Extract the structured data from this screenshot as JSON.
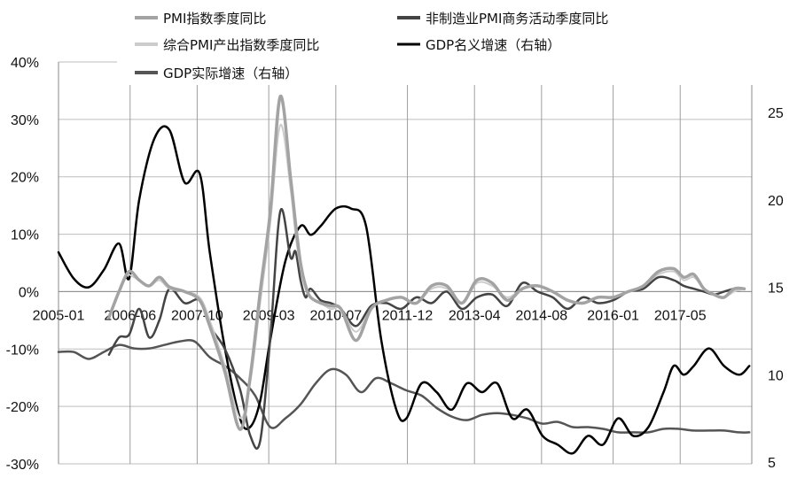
{
  "chart_data": {
    "type": "line",
    "title": "",
    "xlabel": "",
    "ylabel": "",
    "x_tick_labels": [
      "2005-01",
      "2006-06",
      "2007-10",
      "2009-03",
      "2010-07",
      "2011-12",
      "2013-04",
      "2014-08",
      "2016-01",
      "2017-05"
    ],
    "y_left_tick_labels": [
      "40%",
      "30%",
      "20%",
      "10%",
      "0%",
      "-10%",
      "-20%",
      "-30%"
    ],
    "y_right_tick_labels": [
      "25",
      "20",
      "15",
      "10",
      "5"
    ],
    "y_left_range": [
      -30,
      40
    ],
    "y_right_range": [
      5,
      27
    ],
    "grid": true,
    "legend_position": "top",
    "series": [
      {
        "name": "PMI指数季度同比",
        "axis": "left",
        "color": "#a3a3a3",
        "x": [
          2005.3,
          2005.7,
          2006.0,
          2006.2,
          2006.4,
          2006.6,
          2006.8,
          2007.0,
          2007.2,
          2007.5,
          2007.8,
          2008.0,
          2008.3,
          2008.6,
          2008.8,
          2009.0,
          2009.2,
          2009.4,
          2009.6,
          2009.7,
          2009.8,
          2009.9,
          2010.0,
          2010.2,
          2010.4,
          2010.6,
          2010.9,
          2011.2,
          2011.5,
          2011.8,
          2012.1,
          2012.4,
          2012.7,
          2013.0,
          2013.3,
          2013.6,
          2013.9,
          2014.2,
          2014.5,
          2014.8,
          2015.1,
          2015.4,
          2015.7,
          2016.0,
          2016.3,
          2016.6,
          2016.9,
          2017.2,
          2017.4,
          2017.6,
          2017.8,
          2018.0,
          2018.2,
          2018.4,
          2018.6
        ],
        "values": [
          null,
          null,
          -4.5,
          0.0,
          3.5,
          2.0,
          1.0,
          2.5,
          0.8,
          0.0,
          -1.5,
          -6.0,
          -14.0,
          -24.0,
          -15.0,
          0.0,
          14.0,
          34.0,
          20.0,
          12.0,
          5.0,
          1.0,
          -1.0,
          -2.0,
          -2.5,
          -3.0,
          -8.5,
          -3.0,
          -1.5,
          -1.0,
          -2.0,
          1.0,
          1.0,
          -2.0,
          2.0,
          1.5,
          -1.5,
          0.5,
          1.0,
          0.0,
          -1.5,
          -2.0,
          -1.0,
          -1.0,
          0.0,
          1.0,
          3.5,
          4.0,
          2.5,
          3.0,
          0.5,
          -0.5,
          -1.0,
          0.5,
          0.5
        ]
      },
      {
        "name": "非制造业PMI商务活动季度同比",
        "axis": "left",
        "color": "#444444",
        "x": [
          2006.0,
          2006.2,
          2006.4,
          2006.6,
          2006.8,
          2007.0,
          2007.2,
          2007.5,
          2007.8,
          2008.0,
          2008.3,
          2008.6,
          2008.8,
          2009.0,
          2009.2,
          2009.4,
          2009.6,
          2009.7,
          2009.8,
          2009.9,
          2010.0,
          2010.2,
          2010.4,
          2010.6,
          2010.9,
          2011.2,
          2011.5,
          2011.8,
          2012.1,
          2012.4,
          2012.7,
          2013.0,
          2013.3,
          2013.6,
          2013.9,
          2014.2,
          2014.5,
          2014.8,
          2015.1,
          2015.4,
          2015.7,
          2016.0,
          2016.3,
          2016.6,
          2016.9,
          2017.2,
          2017.4,
          2017.6,
          2017.8,
          2018.0,
          2018.2,
          2018.4,
          2018.6
        ],
        "values": [
          -11.0,
          -8.0,
          -7.5,
          -3.0,
          -8.0,
          -5.0,
          0.5,
          -2.0,
          -1.5,
          -6.0,
          -10.0,
          -17.0,
          -25.0,
          -26.0,
          -8.0,
          14.0,
          6.0,
          7.0,
          2.0,
          -1.0,
          0.5,
          -1.5,
          -2.0,
          -3.0,
          -6.0,
          -2.5,
          -2.0,
          -3.0,
          -1.0,
          -2.0,
          0.0,
          -3.0,
          -1.0,
          -0.5,
          -2.5,
          1.5,
          0.0,
          -1.0,
          -3.0,
          -1.0,
          -2.0,
          -1.5,
          0.0,
          0.5,
          2.5,
          2.0,
          1.0,
          0.5,
          0.0,
          -0.5,
          0.0,
          0.5,
          0.5
        ]
      },
      {
        "name": "综合PMI产出指数季度同比",
        "axis": "left",
        "color": "#cccccc",
        "x": [
          2006.4,
          2006.6,
          2006.8,
          2007.0,
          2007.2,
          2007.5,
          2007.8,
          2008.0,
          2008.3,
          2008.6,
          2008.8,
          2009.0,
          2009.2,
          2009.4,
          2009.6,
          2009.7,
          2009.8,
          2009.9,
          2010.0,
          2010.2,
          2010.4,
          2010.6,
          2010.9,
          2011.2,
          2011.5,
          2011.8,
          2012.1,
          2012.4,
          2012.7,
          2013.0,
          2013.3,
          2013.6,
          2013.9,
          2014.2,
          2014.5,
          2014.8,
          2015.1,
          2015.4,
          2015.7,
          2016.0,
          2016.3,
          2016.6,
          2016.9,
          2017.2,
          2017.4,
          2017.6,
          2017.8,
          2018.0,
          2018.2,
          2018.4,
          2018.6
        ],
        "values": [
          3.0,
          2.0,
          1.0,
          2.0,
          0.5,
          0.0,
          -1.0,
          -5.0,
          -13.0,
          -22.0,
          -16.0,
          -2.0,
          12.0,
          29.0,
          18.0,
          10.0,
          4.0,
          0.5,
          -1.0,
          -2.0,
          -3.0,
          -3.0,
          -7.0,
          -3.0,
          -1.5,
          -1.0,
          -2.0,
          0.5,
          0.5,
          -2.0,
          1.5,
          1.0,
          -1.0,
          0.5,
          1.0,
          0.0,
          -1.5,
          -2.0,
          -1.0,
          -1.0,
          0.0,
          1.0,
          3.0,
          3.5,
          2.0,
          2.5,
          0.5,
          -0.5,
          -1.0,
          0.0,
          0.5
        ]
      },
      {
        "name": "GDP名义增速（右轴）",
        "axis": "right",
        "color": "#000000",
        "x": [
          2005.0,
          2005.3,
          2005.6,
          2005.9,
          2006.2,
          2006.4,
          2006.6,
          2006.9,
          2007.2,
          2007.5,
          2007.8,
          2008.0,
          2008.3,
          2008.6,
          2008.8,
          2009.0,
          2009.2,
          2009.5,
          2009.8,
          2010.0,
          2010.2,
          2010.5,
          2010.8,
          2011.1,
          2011.4,
          2011.7,
          2011.9,
          2012.2,
          2012.5,
          2012.8,
          2013.1,
          2013.4,
          2013.7,
          2014.0,
          2014.3,
          2014.6,
          2014.9,
          2015.2,
          2015.5,
          2015.8,
          2016.1,
          2016.4,
          2016.7,
          2017.0,
          2017.2,
          2017.4,
          2017.6,
          2017.9,
          2018.2,
          2018.5,
          2018.7
        ],
        "values": [
          17.0,
          15.5,
          15.0,
          16.0,
          17.5,
          15.5,
          20.0,
          23.5,
          24.0,
          21.0,
          21.5,
          17.0,
          11.5,
          7.5,
          7.0,
          8.5,
          12.0,
          16.5,
          18.5,
          18.0,
          18.5,
          19.5,
          19.5,
          18.5,
          12.0,
          8.0,
          7.5,
          9.5,
          9.0,
          8.0,
          9.5,
          9.0,
          9.5,
          7.5,
          8.0,
          6.5,
          6.0,
          5.5,
          6.5,
          6.0,
          7.5,
          6.5,
          7.0,
          9.0,
          10.5,
          10.0,
          10.5,
          11.5,
          10.5,
          10.0,
          10.5
        ]
      },
      {
        "name": "GDP实际增速（右轴）",
        "axis": "right",
        "color": "#555555",
        "x": [
          2005.0,
          2005.3,
          2005.6,
          2005.9,
          2006.2,
          2006.5,
          2006.8,
          2007.1,
          2007.4,
          2007.7,
          2008.0,
          2008.3,
          2008.6,
          2008.9,
          2009.2,
          2009.5,
          2009.8,
          2010.1,
          2010.4,
          2010.7,
          2011.0,
          2011.3,
          2011.6,
          2011.9,
          2012.2,
          2012.5,
          2012.8,
          2013.1,
          2013.4,
          2013.7,
          2014.0,
          2014.3,
          2014.6,
          2014.9,
          2015.2,
          2015.5,
          2015.8,
          2016.1,
          2016.4,
          2016.7,
          2017.0,
          2017.3,
          2017.6,
          2017.9,
          2018.2,
          2018.5,
          2018.7
        ],
        "values": [
          11.3,
          11.3,
          10.9,
          11.3,
          11.7,
          11.5,
          11.5,
          11.7,
          11.9,
          11.9,
          11.0,
          10.5,
          9.8,
          8.8,
          7.0,
          7.5,
          8.3,
          9.5,
          10.3,
          10.0,
          9.0,
          9.8,
          9.5,
          9.1,
          8.8,
          8.1,
          7.6,
          7.4,
          7.7,
          7.8,
          7.7,
          7.5,
          7.2,
          7.3,
          7.0,
          7.0,
          6.9,
          6.7,
          6.7,
          6.7,
          6.9,
          6.9,
          6.8,
          6.8,
          6.8,
          6.7,
          6.7
        ]
      }
    ]
  }
}
